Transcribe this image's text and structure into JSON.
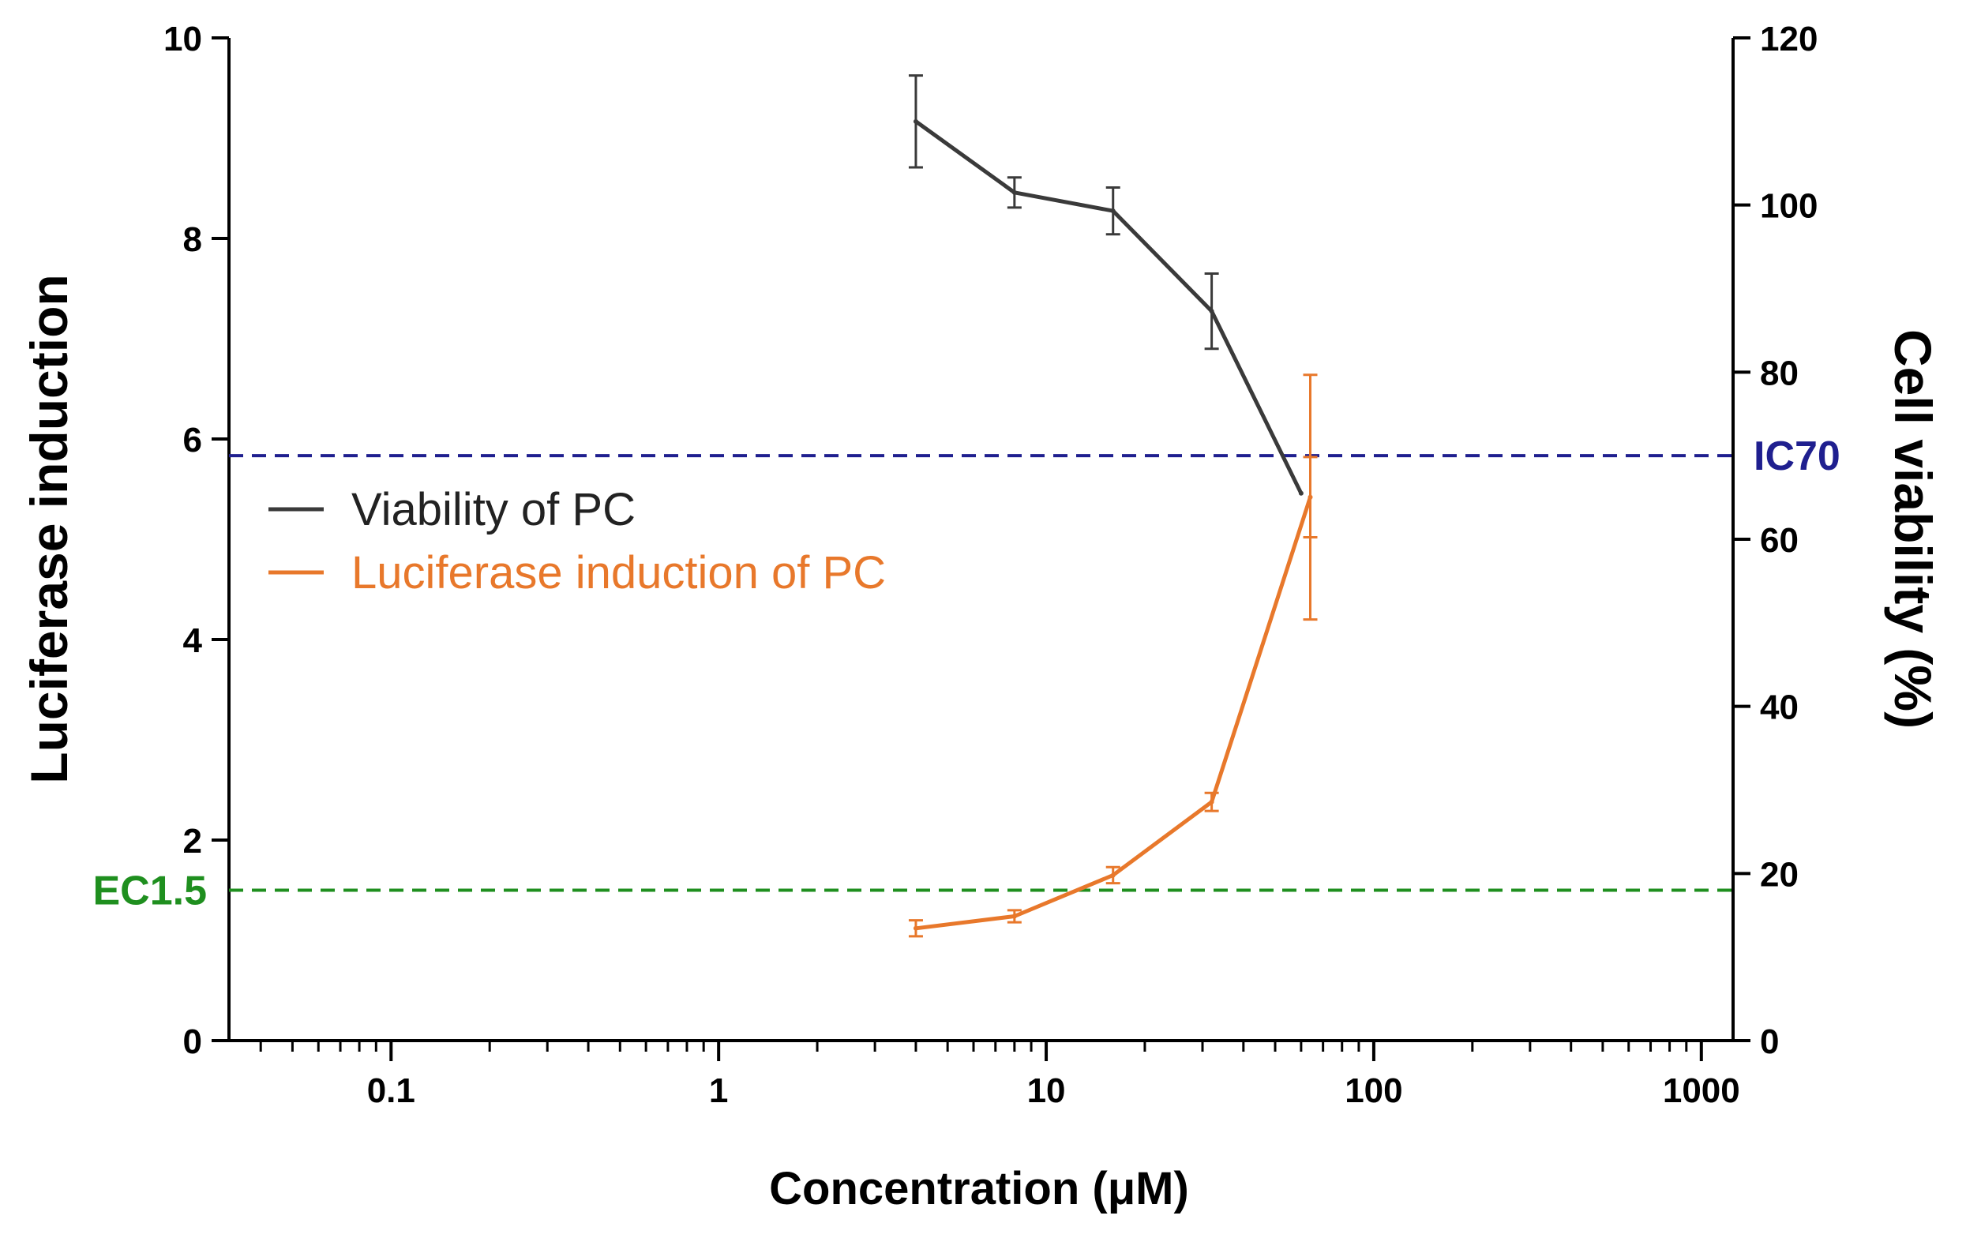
{
  "chart_data": {
    "type": "line",
    "xscale": "log",
    "xlim": [
      0.032,
      1250
    ],
    "xticks": [
      0.1,
      1,
      10,
      100,
      1000
    ],
    "xtick_labels": [
      "0.1",
      "1",
      "10",
      "100",
      "1000"
    ],
    "xlabel": "Concentration (μM)",
    "y_left": {
      "label": "Luciferase induction",
      "lim": [
        0,
        10
      ],
      "ticks": [
        0,
        2,
        4,
        6,
        8,
        10
      ],
      "tick_labels": [
        "0",
        "2",
        "4",
        "6",
        "8",
        "10"
      ]
    },
    "y_right": {
      "label": "Cell viability (%)",
      "lim": [
        0,
        120
      ],
      "ticks": [
        0,
        20,
        40,
        60,
        80,
        100,
        120
      ],
      "tick_labels": [
        "0",
        "20",
        "40",
        "60",
        "80",
        "100",
        "120"
      ]
    },
    "series": [
      {
        "name": "Viability of PC",
        "axis": "right",
        "color": "#3a3a3a",
        "x": [
          4,
          8,
          16,
          32,
          60
        ],
        "y": [
          110,
          101.5,
          99.3,
          87.3,
          65.5
        ],
        "err": [
          5.5,
          1.8,
          2.8,
          4.5,
          0
        ]
      },
      {
        "name": "Luciferase induction of PC",
        "axis": "left",
        "color": "#e8782b",
        "x": [
          4,
          8,
          16,
          32,
          64
        ],
        "y": [
          1.12,
          1.24,
          1.65,
          2.38,
          5.42
        ],
        "err": [
          0.08,
          0.06,
          0.08,
          0.09,
          0.4
        ],
        "err_extra": [
          0,
          0,
          0,
          0,
          0.82
        ]
      }
    ],
    "reference_lines": [
      {
        "name": "IC70",
        "label": "IC70",
        "axis": "right",
        "value": 70,
        "color": "#1f1f8f",
        "style": "dashed"
      },
      {
        "name": "EC1.5",
        "label": "EC1.5",
        "axis": "left",
        "value": 1.5,
        "color": "#1f8f1f",
        "style": "dashed"
      }
    ],
    "legend": {
      "position": "left-middle",
      "entries": [
        "Viability of PC",
        "Luciferase induction of PC"
      ]
    },
    "grid": false
  }
}
